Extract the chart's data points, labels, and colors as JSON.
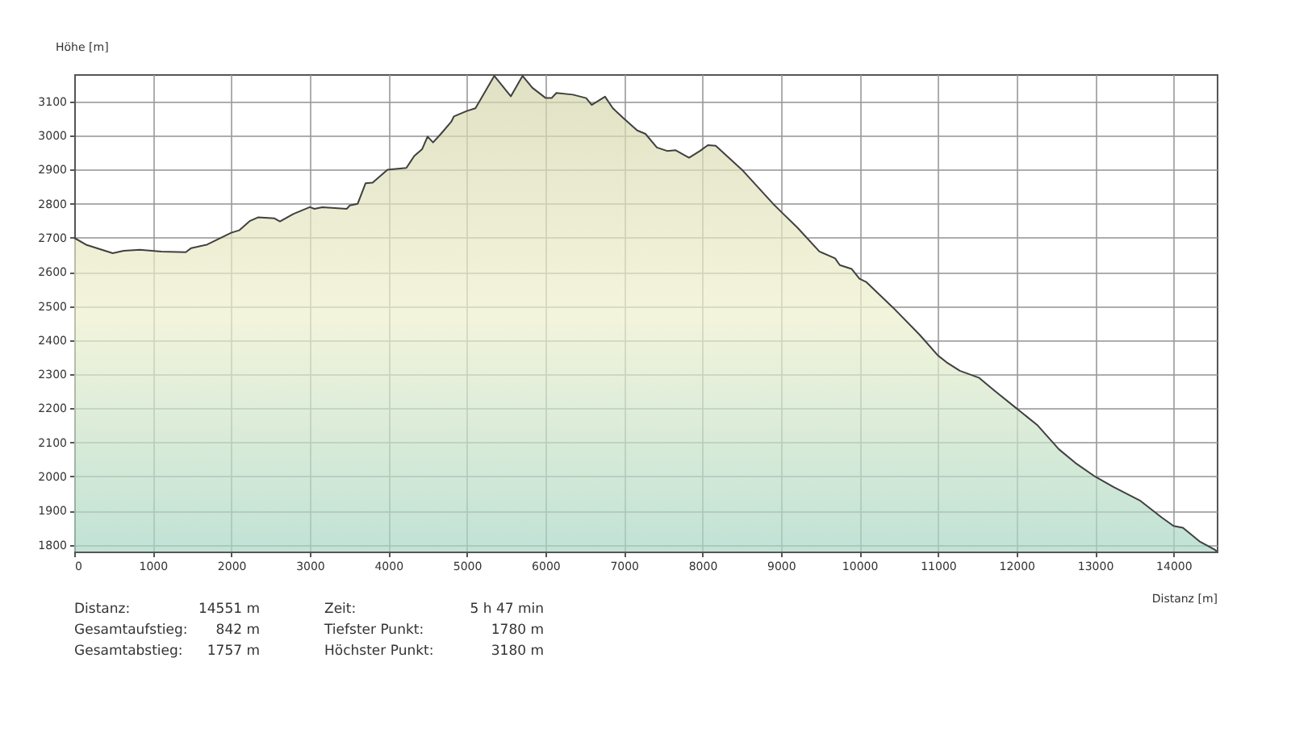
{
  "chart_data": {
    "type": "area",
    "xlabel": "Distanz [m]",
    "ylabel": "Höhe [m]",
    "x": [
      0,
      150,
      490,
      630,
      835,
      1110,
      1420,
      1490,
      1690,
      2000,
      2100,
      2240,
      2340,
      2550,
      2620,
      2790,
      3000,
      3060,
      3160,
      3470,
      3510,
      3610,
      3710,
      3800,
      3990,
      4230,
      4330,
      4430,
      4500,
      4570,
      4670,
      4800,
      4835,
      5000,
      5110,
      5350,
      5560,
      5710,
      5835,
      6005,
      6080,
      6140,
      6350,
      6520,
      6590,
      6760,
      6860,
      7000,
      7170,
      7275,
      7420,
      7550,
      7660,
      7830,
      7970,
      8070,
      8170,
      8520,
      8900,
      9000,
      9210,
      9490,
      9690,
      9750,
      9900,
      10000,
      10090,
      10430,
      10770,
      11000,
      11110,
      11280,
      11520,
      11730,
      12000,
      12270,
      12540,
      12750,
      13000,
      13230,
      13570,
      13850,
      14000,
      14120,
      14330,
      14530,
      14551
    ],
    "series": [
      {
        "color": "#eef0cc",
        "values": [
          2700,
          2680,
          2655,
          2662,
          2665,
          2660,
          2658,
          2670,
          2680,
          2715,
          2722,
          2750,
          2760,
          2757,
          2748,
          2770,
          2790,
          2785,
          2790,
          2785,
          2795,
          2800,
          2860,
          2862,
          2900,
          2905,
          2940,
          2960,
          2997,
          2980,
          3005,
          3040,
          3056,
          3072,
          3080,
          3175,
          3115,
          3175,
          3140,
          3110,
          3110,
          3125,
          3120,
          3110,
          3090,
          3114,
          3080,
          3050,
          3015,
          3005,
          2965,
          2955,
          2957,
          2935,
          2955,
          2972,
          2970,
          2896,
          2800,
          2777,
          2730,
          2660,
          2640,
          2620,
          2609,
          2580,
          2570,
          2495,
          2415,
          2355,
          2335,
          2310,
          2290,
          2250,
          2200,
          2150,
          2080,
          2040,
          2000,
          1970,
          1930,
          1880,
          1855,
          1850,
          1810,
          1785,
          1780
        ]
      }
    ],
    "xlim": [
      0,
      14551
    ],
    "xticks": [
      0,
      1000,
      2000,
      3000,
      4000,
      5000,
      6000,
      7000,
      8000,
      9000,
      10000,
      11000,
      12000,
      13000,
      14000
    ],
    "ylim": [
      1780,
      3180
    ],
    "yticks": [
      1800,
      1900,
      2000,
      2100,
      2200,
      2300,
      2400,
      2500,
      2600,
      2700,
      2800,
      2900,
      3000,
      3100
    ],
    "grid": true,
    "annotations": [
      "Distanz:",
      "14551 m",
      "Zeit:",
      "5 h 47 min",
      "Gesamtaufstieg:",
      "842 m",
      "Tiefster Punkt:",
      "1780 m",
      "Gesamtabstieg:",
      "1757 m",
      "Höchster Punkt:",
      "3180 m"
    ]
  }
}
